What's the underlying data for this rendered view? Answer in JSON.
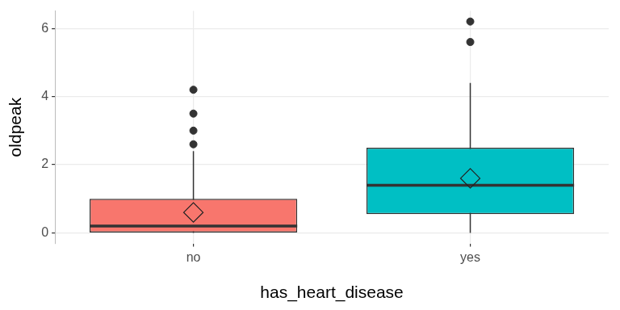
{
  "chart_data": {
    "type": "boxplot",
    "x_label": "has_heart_disease",
    "y_label": "oldpeak",
    "categories": [
      "no",
      "yes"
    ],
    "colors": [
      "#F8766D",
      "#00BFC4"
    ],
    "boxes": [
      {
        "whisker_low": 0,
        "q1": 0,
        "median": 0.2,
        "q3": 1.0,
        "whisker_high": 2.4,
        "mean": 0.6,
        "outliers": [
          2.6,
          3.0,
          3.5,
          4.2
        ]
      },
      {
        "whisker_low": 0,
        "q1": 0.55,
        "median": 1.4,
        "q3": 2.5,
        "whisker_high": 4.4,
        "mean": 1.6,
        "outliers": [
          5.6,
          6.2
        ]
      }
    ],
    "ylim": [
      -0.31,
      6.51
    ],
    "yticks": [
      0,
      2,
      4,
      6
    ],
    "grid": true,
    "marker": "diamond"
  }
}
